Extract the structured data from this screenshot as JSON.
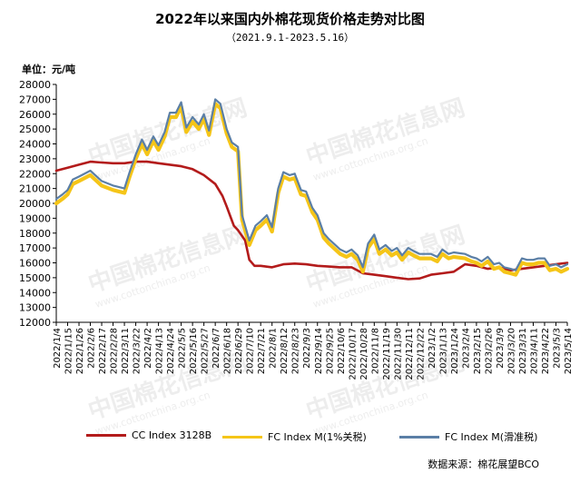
{
  "header": {
    "title": "2022年以来国内外棉花现货价格走势对比图",
    "subtitle": "（2021.9.1-2023.5.16）",
    "unit": "单位：元/吨"
  },
  "watermark": {
    "text": "中国棉花信息网",
    "url": "www.cottonchina.org.cn"
  },
  "source": "数据来源：棉花展望BCO",
  "colors": {
    "cc": "#b31b1b",
    "fc1": "#f5c518",
    "fc2": "#5b7fa6"
  },
  "chart_data": {
    "type": "line",
    "title": "2022年以来国内外棉花现货价格走势对比图",
    "subtitle": "（2021.9.1-2023.5.16）",
    "ylabel": "单位：元/吨",
    "ylim": [
      12000,
      28000
    ],
    "yticks": [
      12000,
      13000,
      14000,
      15000,
      16000,
      17000,
      18000,
      19000,
      20000,
      21000,
      22000,
      23000,
      24000,
      25000,
      26000,
      27000,
      28000
    ],
    "xlim": [
      "2022/1/4",
      "2023/5/14"
    ],
    "categories": [
      "2022/1/4",
      "2022/1/15",
      "2022/1/26",
      "2022/2/6",
      "2022/2/17",
      "2022/2/28",
      "2022/3/11",
      "2022/3/22",
      "2022/4/2",
      "2022/4/13",
      "2022/4/24",
      "2022/5/5",
      "2022/5/16",
      "2022/5/27",
      "2022/6/7",
      "2022/6/18",
      "2022/6/29",
      "2022/7/10",
      "2022/7/21",
      "2022/8/1",
      "2022/8/12",
      "2022/8/23",
      "2022/9/3",
      "2022/9/14",
      "2022/9/25",
      "2022/10/6",
      "2022/10/17",
      "2022/10/28",
      "2022/11/8",
      "2022/11/19",
      "2022/11/30",
      "2022/12/11",
      "2022/12/22",
      "2023/1/2",
      "2023/1/13",
      "2023/1/24",
      "2023/2/4",
      "2023/2/15",
      "2023/2/26",
      "2023/3/9",
      "2023/3/20",
      "2023/3/31",
      "2023/4/11",
      "2023/4/22",
      "2023/5/3",
      "2023/5/14"
    ],
    "grid": false,
    "legend_position": "bottom",
    "series": [
      {
        "name": "CC Index 3128B",
        "points": [
          [
            "2022/1/4",
            22200
          ],
          [
            "2022/1/15",
            22400
          ],
          [
            "2022/1/26",
            22600
          ],
          [
            "2022/2/6",
            22800
          ],
          [
            "2022/2/17",
            22750
          ],
          [
            "2022/2/28",
            22700
          ],
          [
            "2022/3/11",
            22700
          ],
          [
            "2022/3/22",
            22800
          ],
          [
            "2022/4/2",
            22800
          ],
          [
            "2022/4/13",
            22700
          ],
          [
            "2022/4/24",
            22600
          ],
          [
            "2022/5/5",
            22500
          ],
          [
            "2022/5/16",
            22300
          ],
          [
            "2022/5/27",
            21900
          ],
          [
            "2022/6/7",
            21300
          ],
          [
            "2022/6/14",
            20500
          ],
          [
            "2022/6/18",
            19800
          ],
          [
            "2022/6/25",
            18500
          ],
          [
            "2022/6/29",
            18200
          ],
          [
            "2022/7/6",
            17500
          ],
          [
            "2022/7/10",
            16200
          ],
          [
            "2022/7/15",
            15800
          ],
          [
            "2022/7/21",
            15800
          ],
          [
            "2022/8/1",
            15700
          ],
          [
            "2022/8/12",
            15900
          ],
          [
            "2022/8/23",
            15950
          ],
          [
            "2022/9/3",
            15900
          ],
          [
            "2022/9/14",
            15800
          ],
          [
            "2022/9/25",
            15750
          ],
          [
            "2022/10/6",
            15700
          ],
          [
            "2022/10/17",
            15700
          ],
          [
            "2022/10/28",
            15300
          ],
          [
            "2022/11/8",
            15200
          ],
          [
            "2022/11/19",
            15100
          ],
          [
            "2022/11/30",
            15000
          ],
          [
            "2022/12/11",
            14900
          ],
          [
            "2022/12/22",
            14950
          ],
          [
            "2023/1/2",
            15200
          ],
          [
            "2023/1/13",
            15300
          ],
          [
            "2023/1/24",
            15400
          ],
          [
            "2023/2/4",
            15900
          ],
          [
            "2023/2/15",
            15800
          ],
          [
            "2023/2/26",
            15600
          ],
          [
            "2023/3/9",
            15700
          ],
          [
            "2023/3/20",
            15500
          ],
          [
            "2023/3/31",
            15600
          ],
          [
            "2023/4/11",
            15700
          ],
          [
            "2023/4/22",
            15800
          ],
          [
            "2023/5/3",
            15900
          ],
          [
            "2023/5/14",
            16000
          ]
        ]
      },
      {
        "name": "FC Index M(1%关税)",
        "points": [
          [
            "2022/1/4",
            20000
          ],
          [
            "2022/1/10",
            20300
          ],
          [
            "2022/1/15",
            20600
          ],
          [
            "2022/1/20",
            21300
          ],
          [
            "2022/1/26",
            21500
          ],
          [
            "2022/2/6",
            21900
          ],
          [
            "2022/2/17",
            21200
          ],
          [
            "2022/2/28",
            20900
          ],
          [
            "2022/3/11",
            20700
          ],
          [
            "2022/3/16",
            21800
          ],
          [
            "2022/3/22",
            23000
          ],
          [
            "2022/3/28",
            24000
          ],
          [
            "2022/4/2",
            23300
          ],
          [
            "2022/4/8",
            24200
          ],
          [
            "2022/4/13",
            23600
          ],
          [
            "2022/4/19",
            24500
          ],
          [
            "2022/4/24",
            25800
          ],
          [
            "2022/4/30",
            25800
          ],
          [
            "2022/5/5",
            26500
          ],
          [
            "2022/5/10",
            24800
          ],
          [
            "2022/5/16",
            25500
          ],
          [
            "2022/5/22",
            25000
          ],
          [
            "2022/5/27",
            25700
          ],
          [
            "2022/6/1",
            24600
          ],
          [
            "2022/6/7",
            26700
          ],
          [
            "2022/6/12",
            26400
          ],
          [
            "2022/6/18",
            24700
          ],
          [
            "2022/6/23",
            23800
          ],
          [
            "2022/6/29",
            23500
          ],
          [
            "2022/7/3",
            18900
          ],
          [
            "2022/7/10",
            17200
          ],
          [
            "2022/7/16",
            18200
          ],
          [
            "2022/7/21",
            18500
          ],
          [
            "2022/7/27",
            18900
          ],
          [
            "2022/8/1",
            18100
          ],
          [
            "2022/8/7",
            20700
          ],
          [
            "2022/8/12",
            21800
          ],
          [
            "2022/8/18",
            21600
          ],
          [
            "2022/8/23",
            21700
          ],
          [
            "2022/8/29",
            20600
          ],
          [
            "2022/9/3",
            20500
          ],
          [
            "2022/9/9",
            19400
          ],
          [
            "2022/9/14",
            18900
          ],
          [
            "2022/9/20",
            17700
          ],
          [
            "2022/9/25",
            17300
          ],
          [
            "2022/10/6",
            16600
          ],
          [
            "2022/10/12",
            16400
          ],
          [
            "2022/10/17",
            16600
          ],
          [
            "2022/10/23",
            16200
          ],
          [
            "2022/10/28",
            15400
          ],
          [
            "2022/11/2",
            17000
          ],
          [
            "2022/11/8",
            17600
          ],
          [
            "2022/11/13",
            16600
          ],
          [
            "2022/11/19",
            16900
          ],
          [
            "2022/11/25",
            16500
          ],
          [
            "2022/11/30",
            16700
          ],
          [
            "2022/12/5",
            16200
          ],
          [
            "2022/12/11",
            16700
          ],
          [
            "2022/12/16",
            16500
          ],
          [
            "2022/12/22",
            16300
          ],
          [
            "2023/1/2",
            16300
          ],
          [
            "2023/1/8",
            16100
          ],
          [
            "2023/1/13",
            16600
          ],
          [
            "2023/1/19",
            16300
          ],
          [
            "2023/1/24",
            16400
          ],
          [
            "2023/2/4",
            16300
          ],
          [
            "2023/2/10",
            16100
          ],
          [
            "2023/2/15",
            16000
          ],
          [
            "2023/2/20",
            15800
          ],
          [
            "2023/2/26",
            16100
          ],
          [
            "2023/3/4",
            15600
          ],
          [
            "2023/3/9",
            15700
          ],
          [
            "2023/3/14",
            15400
          ],
          [
            "2023/3/20",
            15300
          ],
          [
            "2023/3/25",
            15200
          ],
          [
            "2023/3/31",
            16000
          ],
          [
            "2023/4/5",
            15900
          ],
          [
            "2023/4/11",
            15900
          ],
          [
            "2023/4/16",
            16000
          ],
          [
            "2023/4/22",
            16000
          ],
          [
            "2023/4/27",
            15500
          ],
          [
            "2023/5/3",
            15600
          ],
          [
            "2023/5/8",
            15400
          ],
          [
            "2023/5/14",
            15600
          ]
        ]
      },
      {
        "name": "FC Index M(滑准税)",
        "points": [
          [
            "2022/1/4",
            20300
          ],
          [
            "2022/1/10",
            20600
          ],
          [
            "2022/1/15",
            20900
          ],
          [
            "2022/1/20",
            21600
          ],
          [
            "2022/1/26",
            21800
          ],
          [
            "2022/2/6",
            22200
          ],
          [
            "2022/2/17",
            21500
          ],
          [
            "2022/2/28",
            21200
          ],
          [
            "2022/3/11",
            21000
          ],
          [
            "2022/3/16",
            22100
          ],
          [
            "2022/3/22",
            23300
          ],
          [
            "2022/3/28",
            24300
          ],
          [
            "2022/4/2",
            23600
          ],
          [
            "2022/4/8",
            24500
          ],
          [
            "2022/4/13",
            23900
          ],
          [
            "2022/4/19",
            24800
          ],
          [
            "2022/4/24",
            26100
          ],
          [
            "2022/4/30",
            26100
          ],
          [
            "2022/5/5",
            26800
          ],
          [
            "2022/5/10",
            25100
          ],
          [
            "2022/5/16",
            25800
          ],
          [
            "2022/5/22",
            25300
          ],
          [
            "2022/5/27",
            26000
          ],
          [
            "2022/6/1",
            24900
          ],
          [
            "2022/6/7",
            27000
          ],
          [
            "2022/6/12",
            26700
          ],
          [
            "2022/6/18",
            25000
          ],
          [
            "2022/6/23",
            24100
          ],
          [
            "2022/6/29",
            23800
          ],
          [
            "2022/7/3",
            19200
          ],
          [
            "2022/7/10",
            17500
          ],
          [
            "2022/7/16",
            18500
          ],
          [
            "2022/7/21",
            18800
          ],
          [
            "2022/7/27",
            19200
          ],
          [
            "2022/8/1",
            18400
          ],
          [
            "2022/8/7",
            21000
          ],
          [
            "2022/8/12",
            22100
          ],
          [
            "2022/8/18",
            21900
          ],
          [
            "2022/8/23",
            22000
          ],
          [
            "2022/8/29",
            20900
          ],
          [
            "2022/9/3",
            20800
          ],
          [
            "2022/9/9",
            19700
          ],
          [
            "2022/9/14",
            19200
          ],
          [
            "2022/9/20",
            18000
          ],
          [
            "2022/9/25",
            17600
          ],
          [
            "2022/10/6",
            16900
          ],
          [
            "2022/10/12",
            16700
          ],
          [
            "2022/10/17",
            16900
          ],
          [
            "2022/10/23",
            16500
          ],
          [
            "2022/10/28",
            15700
          ],
          [
            "2022/11/2",
            17300
          ],
          [
            "2022/11/8",
            17900
          ],
          [
            "2022/11/13",
            16900
          ],
          [
            "2022/11/19",
            17200
          ],
          [
            "2022/11/25",
            16800
          ],
          [
            "2022/11/30",
            17000
          ],
          [
            "2022/12/5",
            16500
          ],
          [
            "2022/12/11",
            17000
          ],
          [
            "2022/12/16",
            16800
          ],
          [
            "2022/12/22",
            16600
          ],
          [
            "2023/1/2",
            16600
          ],
          [
            "2023/1/8",
            16400
          ],
          [
            "2023/1/13",
            16900
          ],
          [
            "2023/1/19",
            16600
          ],
          [
            "2023/1/24",
            16700
          ],
          [
            "2023/2/4",
            16600
          ],
          [
            "2023/2/10",
            16400
          ],
          [
            "2023/2/15",
            16300
          ],
          [
            "2023/2/20",
            16100
          ],
          [
            "2023/2/26",
            16400
          ],
          [
            "2023/3/4",
            15900
          ],
          [
            "2023/3/9",
            16000
          ],
          [
            "2023/3/14",
            15700
          ],
          [
            "2023/3/20",
            15600
          ],
          [
            "2023/3/25",
            15500
          ],
          [
            "2023/3/31",
            16300
          ],
          [
            "2023/4/5",
            16200
          ],
          [
            "2023/4/11",
            16200
          ],
          [
            "2023/4/16",
            16300
          ],
          [
            "2023/4/22",
            16300
          ],
          [
            "2023/4/27",
            15800
          ],
          [
            "2023/5/3",
            15900
          ],
          [
            "2023/5/8",
            15700
          ],
          [
            "2023/5/14",
            15900
          ]
        ]
      }
    ]
  }
}
